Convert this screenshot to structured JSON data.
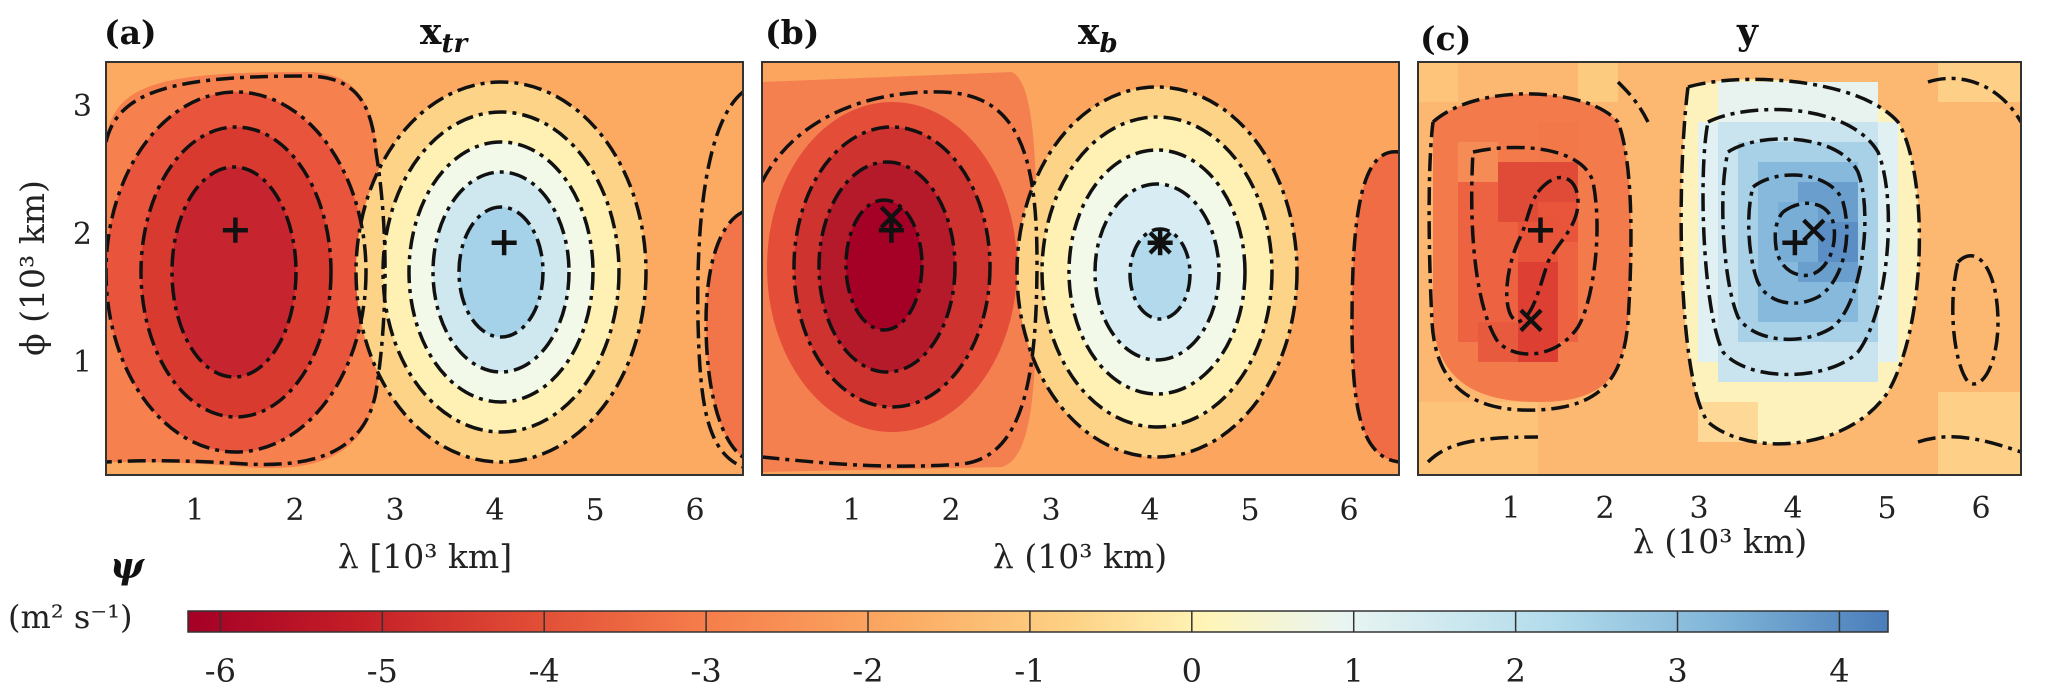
{
  "chart_data": {
    "type": "heatmap",
    "title": "Streamfunction fields",
    "panels": [
      {
        "id": "a",
        "label": "(a)",
        "title": "x",
        "title_sub": "tr",
        "xlabel": "λ [10³ km]",
        "ylabel": "ϕ (10³ km)",
        "xlim": [
          0.1,
          6.5
        ],
        "ylim": [
          0.1,
          3.3
        ],
        "xticks": [
          "1",
          "2",
          "3",
          "4",
          "5",
          "6"
        ],
        "yticks": [
          "1",
          "2",
          "3"
        ],
        "field": {
          "min_center": [
            1.4,
            2.0
          ],
          "min_value": -6.0,
          "max_center": [
            4.1,
            1.9
          ],
          "max_value": 3.0
        },
        "markers": [
          {
            "symbol": "+",
            "x": 1.4,
            "y": 2.0
          },
          {
            "symbol": "+",
            "x": 4.1,
            "y": 1.9
          }
        ]
      },
      {
        "id": "b",
        "label": "(b)",
        "title": "x",
        "title_sub": "b",
        "xlabel": "λ (10³ km)",
        "ylabel": "",
        "xlim": [
          0.1,
          6.5
        ],
        "ylim": [
          0.1,
          3.3
        ],
        "xticks": [
          "1",
          "2",
          "3",
          "4",
          "5",
          "6"
        ],
        "yticks": [],
        "field": {
          "min_center": [
            1.4,
            2.05
          ],
          "min_value": -6.3,
          "max_center": [
            4.1,
            1.9
          ],
          "max_value": 1.6
        },
        "markers": [
          {
            "symbol": "+",
            "x": 1.4,
            "y": 2.0
          },
          {
            "symbol": "×",
            "x": 1.4,
            "y": 2.1
          },
          {
            "symbol": "+",
            "x": 4.1,
            "y": 1.9
          },
          {
            "symbol": "×",
            "x": 4.1,
            "y": 1.9
          }
        ]
      },
      {
        "id": "c",
        "label": "(c)",
        "title": "y",
        "title_sub": "",
        "xlabel": "λ (10³ km)",
        "ylabel": "",
        "xlim": [
          0.1,
          6.5
        ],
        "ylim": [
          0.1,
          3.3
        ],
        "xticks": [
          "1",
          "2",
          "3",
          "4",
          "5",
          "6"
        ],
        "yticks": [],
        "field": {
          "min_center": [
            1.3,
            1.6
          ],
          "min_value": -5.0,
          "max_center": [
            4.2,
            1.9
          ],
          "max_value": 3.5
        },
        "markers": [
          {
            "symbol": "+",
            "x": 1.4,
            "y": 2.0
          },
          {
            "symbol": "×",
            "x": 1.3,
            "y": 1.3
          },
          {
            "symbol": "+",
            "x": 4.1,
            "y": 1.9
          },
          {
            "symbol": "×",
            "x": 4.3,
            "y": 2.0
          }
        ]
      }
    ],
    "colorbar": {
      "label": "ψ",
      "units": "(m² s⁻¹)",
      "range": [
        -6.2,
        4.3
      ],
      "ticks": [
        "-6",
        "-5",
        "-4",
        "-3",
        "-2",
        "-1",
        "0",
        "1",
        "2",
        "3",
        "4"
      ],
      "colors": [
        "#a50026",
        "#d73027",
        "#f46d43",
        "#fdae61",
        "#fee090",
        "#ffffbf",
        "#e0f3f8",
        "#abd9e9",
        "#74add1",
        "#4575b4"
      ]
    }
  }
}
